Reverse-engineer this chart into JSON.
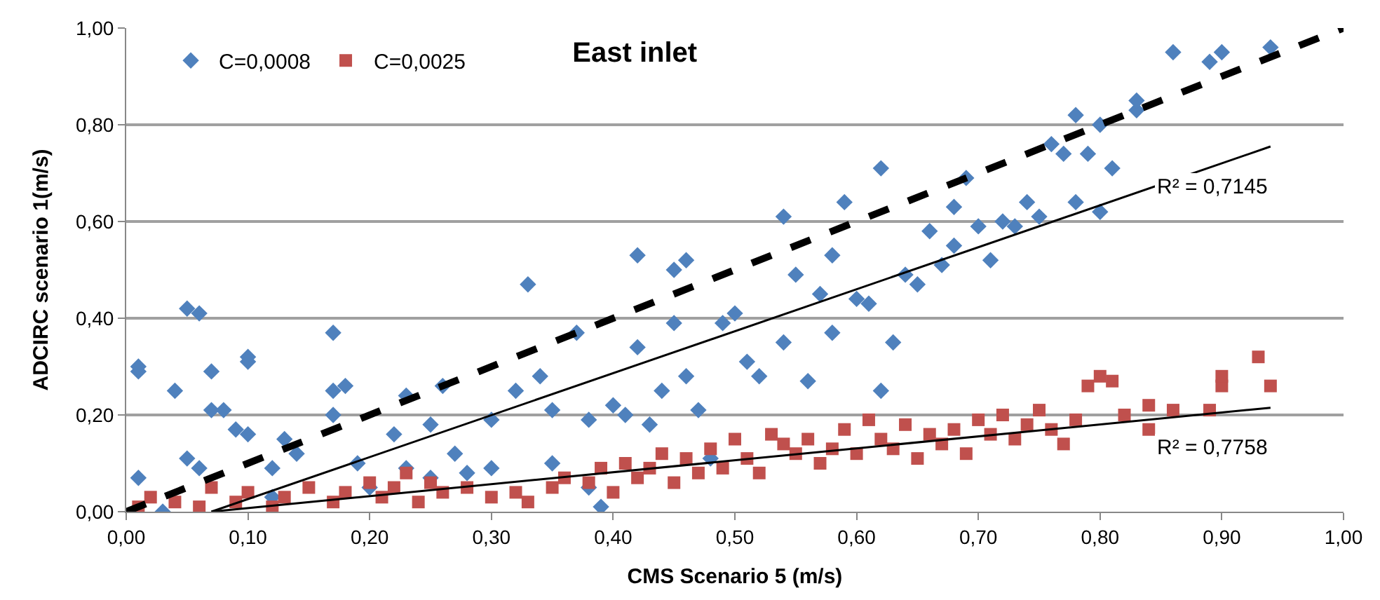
{
  "chart_data": {
    "type": "scatter",
    "title": "East inlet",
    "xlabel": "CMS Scenario 5 (m/s)",
    "ylabel": "ADCIRC scenario 1(m/s)",
    "xlim": [
      0,
      1
    ],
    "ylim": [
      0,
      1
    ],
    "xticks": [
      {
        "value": 0,
        "label": "0,00"
      },
      {
        "value": 0.1,
        "label": "0,10"
      },
      {
        "value": 0.2,
        "label": "0,20"
      },
      {
        "value": 0.3,
        "label": "0,30"
      },
      {
        "value": 0.4,
        "label": "0,40"
      },
      {
        "value": 0.5,
        "label": "0,50"
      },
      {
        "value": 0.6,
        "label": "0,60"
      },
      {
        "value": 0.7,
        "label": "0,70"
      },
      {
        "value": 0.8,
        "label": "0,80"
      },
      {
        "value": 0.9,
        "label": "0,90"
      },
      {
        "value": 1,
        "label": "1,00"
      }
    ],
    "yticks": [
      {
        "value": 0,
        "label": "0,00"
      },
      {
        "value": 0.2,
        "label": "0,20"
      },
      {
        "value": 0.4,
        "label": "0,40"
      },
      {
        "value": 0.6,
        "label": "0,60"
      },
      {
        "value": 0.8,
        "label": "0,80"
      },
      {
        "value": 1,
        "label": "1,00"
      }
    ],
    "grid": "y",
    "legend": "top left",
    "series": [
      {
        "name": "C=0,0008",
        "color": "#4f81bd",
        "marker": "diamond",
        "x": [
          0.01,
          0.01,
          0.01,
          0.04,
          0.05,
          0.05,
          0.06,
          0.06,
          0.07,
          0.07,
          0.08,
          0.09,
          0.1,
          0.1,
          0.1,
          0.12,
          0.13,
          0.14,
          0.17,
          0.17,
          0.18,
          0.17,
          0.19,
          0.22,
          0.23,
          0.23,
          0.25,
          0.26,
          0.27,
          0.28,
          0.3,
          0.32,
          0.33,
          0.34,
          0.35,
          0.37,
          0.38,
          0.38,
          0.39,
          0.4,
          0.41,
          0.42,
          0.42,
          0.43,
          0.44,
          0.45,
          0.45,
          0.46,
          0.46,
          0.47,
          0.48,
          0.49,
          0.5,
          0.51,
          0.52,
          0.54,
          0.54,
          0.55,
          0.56,
          0.57,
          0.58,
          0.58,
          0.59,
          0.6,
          0.61,
          0.62,
          0.62,
          0.63,
          0.64,
          0.65,
          0.66,
          0.67,
          0.68,
          0.68,
          0.69,
          0.7,
          0.71,
          0.72,
          0.73,
          0.74,
          0.75,
          0.76,
          0.77,
          0.78,
          0.78,
          0.79,
          0.8,
          0.8,
          0.81,
          0.83,
          0.83,
          0.86,
          0.89,
          0.9,
          0.94,
          0.03,
          0.12,
          0.2,
          0.25,
          0.3,
          0.35
        ],
        "values": [
          0.07,
          0.29,
          0.3,
          0.25,
          0.11,
          0.42,
          0.41,
          0.09,
          0.29,
          0.21,
          0.21,
          0.17,
          0.32,
          0.31,
          0.16,
          0.09,
          0.15,
          0.12,
          0.37,
          0.25,
          0.26,
          0.2,
          0.1,
          0.16,
          0.24,
          0.09,
          0.18,
          0.26,
          0.12,
          0.08,
          0.19,
          0.25,
          0.47,
          0.28,
          0.21,
          0.37,
          0.19,
          0.05,
          0.01,
          0.22,
          0.2,
          0.34,
          0.53,
          0.18,
          0.25,
          0.39,
          0.5,
          0.52,
          0.28,
          0.21,
          0.11,
          0.39,
          0.41,
          0.31,
          0.28,
          0.35,
          0.61,
          0.49,
          0.27,
          0.45,
          0.53,
          0.37,
          0.64,
          0.44,
          0.43,
          0.71,
          0.25,
          0.35,
          0.49,
          0.47,
          0.58,
          0.51,
          0.63,
          0.55,
          0.69,
          0.59,
          0.52,
          0.6,
          0.59,
          0.64,
          0.61,
          0.76,
          0.74,
          0.82,
          0.64,
          0.74,
          0.8,
          0.62,
          0.71,
          0.83,
          0.85,
          0.95,
          0.93,
          0.95,
          0.96,
          0.0,
          0.03,
          0.05,
          0.07,
          0.09,
          0.1
        ]
      },
      {
        "name": "C=0,0025",
        "color": "#c0504d",
        "marker": "square",
        "x": [
          0.01,
          0.02,
          0.04,
          0.06,
          0.07,
          0.09,
          0.1,
          0.12,
          0.13,
          0.15,
          0.17,
          0.18,
          0.2,
          0.21,
          0.22,
          0.23,
          0.24,
          0.25,
          0.26,
          0.28,
          0.3,
          0.32,
          0.33,
          0.35,
          0.36,
          0.38,
          0.39,
          0.4,
          0.41,
          0.42,
          0.43,
          0.44,
          0.45,
          0.46,
          0.47,
          0.48,
          0.49,
          0.5,
          0.51,
          0.52,
          0.53,
          0.54,
          0.55,
          0.56,
          0.57,
          0.58,
          0.59,
          0.6,
          0.61,
          0.62,
          0.63,
          0.64,
          0.65,
          0.66,
          0.67,
          0.68,
          0.69,
          0.7,
          0.71,
          0.72,
          0.73,
          0.74,
          0.75,
          0.76,
          0.77,
          0.78,
          0.79,
          0.8,
          0.81,
          0.82,
          0.84,
          0.84,
          0.86,
          0.89,
          0.9,
          0.9,
          0.93,
          0.94
        ],
        "values": [
          0.01,
          0.03,
          0.02,
          0.01,
          0.05,
          0.02,
          0.04,
          0.01,
          0.03,
          0.05,
          0.02,
          0.04,
          0.06,
          0.03,
          0.05,
          0.08,
          0.02,
          0.06,
          0.04,
          0.05,
          0.03,
          0.04,
          0.02,
          0.05,
          0.07,
          0.06,
          0.09,
          0.04,
          0.1,
          0.07,
          0.09,
          0.12,
          0.06,
          0.11,
          0.08,
          0.13,
          0.09,
          0.15,
          0.11,
          0.08,
          0.16,
          0.14,
          0.12,
          0.15,
          0.1,
          0.13,
          0.17,
          0.12,
          0.19,
          0.15,
          0.13,
          0.18,
          0.11,
          0.16,
          0.14,
          0.17,
          0.12,
          0.19,
          0.16,
          0.2,
          0.15,
          0.18,
          0.21,
          0.17,
          0.14,
          0.19,
          0.26,
          0.28,
          0.27,
          0.2,
          0.22,
          0.17,
          0.21,
          0.21,
          0.26,
          0.28,
          0.32,
          0.26
        ]
      },
      {
        "type": "line",
        "color": "#000000",
        "marker": "none",
        "line_style": "dashed",
        "x": [
          0,
          1
        ],
        "values": [
          0,
          1
        ]
      },
      {
        "type": "line",
        "color": "#000000",
        "marker": "none",
        "line_style": "solid",
        "x": [
          0.07,
          0.94
        ],
        "values": [
          0,
          0.755
        ]
      },
      {
        "type": "line",
        "color": "#000000",
        "marker": "none",
        "line_style": "solid",
        "x": [
          0.07,
          0.94
        ],
        "values": [
          0,
          0.215
        ]
      }
    ],
    "annotations": [
      "R² = 0,7145",
      "R² = 0,7758"
    ]
  }
}
